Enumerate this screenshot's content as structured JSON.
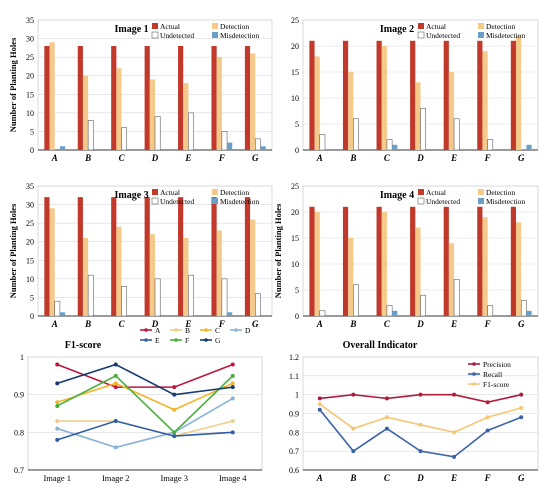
{
  "colors": {
    "actual": "#c0392b",
    "detection": "#f5c98a",
    "undetected": "#ffffff",
    "misdetection": "#6a9fc7",
    "precision": "#b01c3c",
    "recall": "#3a62a8",
    "f1": "#f7c675",
    "line_A": "#c0163c",
    "line_B": "#f0cd8a",
    "line_C": "#f2b52c",
    "line_D": "#8ab3d9",
    "line_E": "#2e5ea6",
    "line_F": "#4aae3c",
    "line_G": "#173a72"
  },
  "chart_data": [
    {
      "type": "bar",
      "title": "Image 1",
      "ylabel": "Number of Planting Holes",
      "categories": [
        "A",
        "B",
        "C",
        "D",
        "E",
        "F",
        "G"
      ],
      "ylim": [
        0,
        35
      ],
      "yticks": [
        "0",
        "5",
        "10",
        "15",
        "20",
        "25",
        "30",
        "35"
      ],
      "legend": [
        "Actual",
        "Detection",
        "Undetected",
        "Misdetection"
      ],
      "series": [
        {
          "name": "Actual",
          "values": [
            28,
            28,
            28,
            28,
            28,
            28,
            28
          ]
        },
        {
          "name": "Detection",
          "values": [
            29,
            20,
            22,
            19,
            18,
            25,
            26
          ]
        },
        {
          "name": "Undetected",
          "values": [
            0,
            8,
            6,
            9,
            10,
            5,
            3
          ]
        },
        {
          "name": "Misdetection",
          "values": [
            1,
            0,
            0,
            0,
            0,
            2,
            1
          ]
        }
      ]
    },
    {
      "type": "bar",
      "title": "Image 2",
      "ylabel": "",
      "categories": [
        "A",
        "B",
        "C",
        "D",
        "E",
        "F",
        "G"
      ],
      "ylim": [
        0,
        25
      ],
      "yticks": [
        "0",
        "5",
        "10",
        "15",
        "20",
        "25"
      ],
      "legend": [
        "Actual",
        "Detection",
        "Undetected",
        "Misdetection"
      ],
      "series": [
        {
          "name": "Actual",
          "values": [
            21,
            21,
            21,
            21,
            21,
            21,
            21
          ]
        },
        {
          "name": "Detection",
          "values": [
            18,
            15,
            20,
            13,
            15,
            19,
            22
          ]
        },
        {
          "name": "Undetected",
          "values": [
            3,
            6,
            2,
            8,
            6,
            2,
            0
          ]
        },
        {
          "name": "Misdetection",
          "values": [
            0,
            0,
            1,
            0,
            0,
            0,
            1
          ]
        }
      ]
    },
    {
      "type": "bar",
      "title": "Image 3",
      "ylabel": "Number of Planting Holes",
      "categories": [
        "A",
        "B",
        "C",
        "D",
        "E",
        "F",
        "G"
      ],
      "ylim": [
        0,
        35
      ],
      "yticks": [
        "0",
        "5",
        "10",
        "15",
        "20",
        "25",
        "30",
        "35"
      ],
      "legend": [
        "Actual",
        "Detection",
        "Undetected",
        "Misdetection"
      ],
      "series": [
        {
          "name": "Actual",
          "values": [
            32,
            32,
            32,
            32,
            32,
            32,
            32
          ]
        },
        {
          "name": "Detection",
          "values": [
            29,
            21,
            24,
            22,
            21,
            23,
            26
          ]
        },
        {
          "name": "Undetected",
          "values": [
            4,
            11,
            8,
            10,
            11,
            10,
            6
          ]
        },
        {
          "name": "Misdetection",
          "values": [
            1,
            0,
            0,
            0,
            0,
            1,
            0
          ]
        }
      ]
    },
    {
      "type": "bar",
      "title": "Image 4",
      "ylabel": "Number of Planting Holes",
      "categories": [
        "A",
        "B",
        "C",
        "D",
        "E",
        "F",
        "G"
      ],
      "ylim": [
        0,
        25
      ],
      "yticks": [
        "0",
        "5",
        "10",
        "15",
        "20",
        "25"
      ],
      "legend": [
        "Actual",
        "Detection",
        "Undetected",
        "Misdetection"
      ],
      "series": [
        {
          "name": "Actual",
          "values": [
            21,
            21,
            21,
            21,
            21,
            21,
            21
          ]
        },
        {
          "name": "Detection",
          "values": [
            20,
            15,
            20,
            17,
            14,
            19,
            18
          ]
        },
        {
          "name": "Undetected",
          "values": [
            1,
            6,
            2,
            4,
            7,
            2,
            3
          ]
        },
        {
          "name": "Misdetection",
          "values": [
            0,
            0,
            1,
            0,
            0,
            0,
            1
          ]
        }
      ]
    },
    {
      "type": "line",
      "title": "F1-score",
      "categories": [
        "Image 1",
        "Image 2",
        "Image 3",
        "Image 4"
      ],
      "ylim": [
        0.7,
        1.0
      ],
      "yticks": [
        "0.7",
        "0.8",
        "0.9",
        "1"
      ],
      "legend": [
        "A",
        "B",
        "C",
        "D",
        "E",
        "F",
        "G"
      ],
      "series": [
        {
          "name": "A",
          "values": [
            0.98,
            0.92,
            0.92,
            0.98
          ]
        },
        {
          "name": "B",
          "values": [
            0.83,
            0.83,
            0.79,
            0.83
          ]
        },
        {
          "name": "C",
          "values": [
            0.88,
            0.93,
            0.86,
            0.93
          ]
        },
        {
          "name": "D",
          "values": [
            0.81,
            0.76,
            0.8,
            0.89
          ]
        },
        {
          "name": "E",
          "values": [
            0.78,
            0.83,
            0.79,
            0.8
          ]
        },
        {
          "name": "F",
          "values": [
            0.87,
            0.95,
            0.8,
            0.95
          ]
        },
        {
          "name": "G",
          "values": [
            0.93,
            0.98,
            0.9,
            0.92
          ]
        }
      ]
    },
    {
      "type": "line",
      "title": "Overall Indicator",
      "categories": [
        "A",
        "B",
        "C",
        "D",
        "E",
        "F",
        "G"
      ],
      "ylim": [
        0.6,
        1.2
      ],
      "yticks": [
        "0.6",
        "0.7",
        "0.8",
        "0.9",
        "1",
        "1.1",
        "1.2"
      ],
      "legend": [
        "Precision",
        "Recall",
        "F1-score"
      ],
      "series": [
        {
          "name": "Precision",
          "values": [
            0.98,
            1.0,
            0.98,
            1.0,
            1.0,
            0.96,
            1.0
          ]
        },
        {
          "name": "Recall",
          "values": [
            0.92,
            0.7,
            0.82,
            0.7,
            0.67,
            0.81,
            0.88
          ]
        },
        {
          "name": "F1-score",
          "values": [
            0.95,
            0.82,
            0.88,
            0.84,
            0.8,
            0.88,
            0.93
          ]
        }
      ]
    }
  ]
}
